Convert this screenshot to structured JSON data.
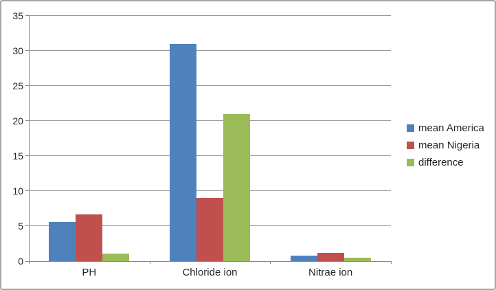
{
  "chart": {
    "background": "#ffffff",
    "border_color": "#a6a6a6",
    "gridline_color": "#9a9a9a",
    "axis_line_color": "#898989",
    "text_color": "#262626"
  },
  "chart_data": {
    "type": "bar",
    "title": "",
    "categories": [
      "PH",
      "Chloride ion",
      "Nitrae ion"
    ],
    "series": [
      {
        "name": "mean America",
        "color": "#4F81BD",
        "values": [
          5.6,
          31,
          0.8
        ]
      },
      {
        "name": "mean Nigeria",
        "color": "#C0504D",
        "values": [
          6.7,
          9,
          1.2
        ]
      },
      {
        "name": "difference",
        "color": "#9BBB59",
        "values": [
          1.1,
          21,
          0.5
        ]
      }
    ],
    "ylim": [
      0,
      35
    ],
    "ytick_step": 5,
    "ytick_labels": [
      "0",
      "5",
      "10",
      "15",
      "20",
      "25",
      "30",
      "35"
    ],
    "grid": true,
    "legend_position": "right"
  },
  "legend": {
    "items": [
      "mean America",
      "mean Nigeria",
      "difference"
    ]
  }
}
